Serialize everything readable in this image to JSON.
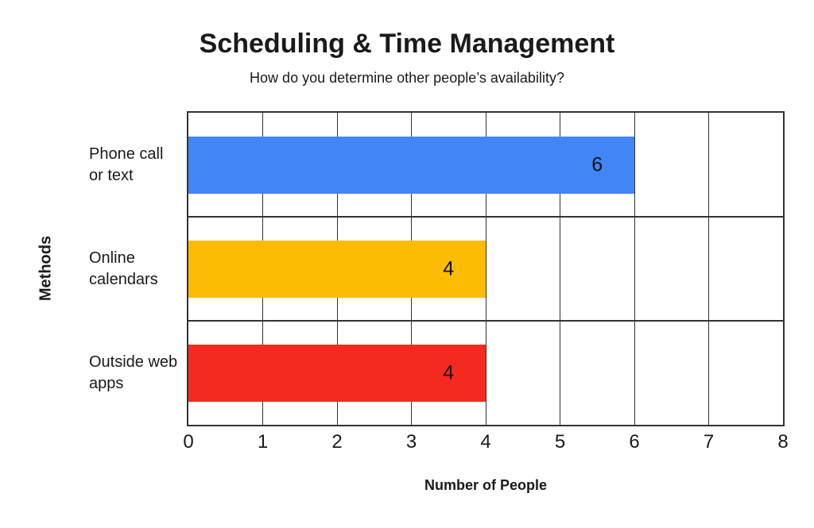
{
  "chart_data": {
    "type": "bar",
    "orientation": "horizontal",
    "title": "Scheduling & Time Management",
    "subtitle": "How do you determine other people’s availability?",
    "categories": [
      "Phone call or text",
      "Online calendars",
      "Outside web apps"
    ],
    "category_display": [
      [
        "Phone call",
        "or text"
      ],
      [
        "Online",
        "calendars"
      ],
      [
        "Outside web",
        "apps"
      ]
    ],
    "values": [
      6,
      4,
      4
    ],
    "value_labels": [
      "6",
      "4",
      "4"
    ],
    "bar_colors": [
      "#4285F4",
      "#FBBC04",
      "#F42A20"
    ],
    "xlabel": "Number of People",
    "ylabel": "Methods",
    "xlim": [
      0,
      8
    ],
    "xticks": [
      "0",
      "1",
      "2",
      "3",
      "4",
      "5",
      "6",
      "7",
      "8"
    ],
    "grid": "on",
    "legend": "none",
    "styles": {
      "background": "#ffffff",
      "grid_color": "#333333",
      "border_color": "#333333",
      "text_color": "#1a1a1a",
      "value_label_color": "#111111"
    }
  }
}
